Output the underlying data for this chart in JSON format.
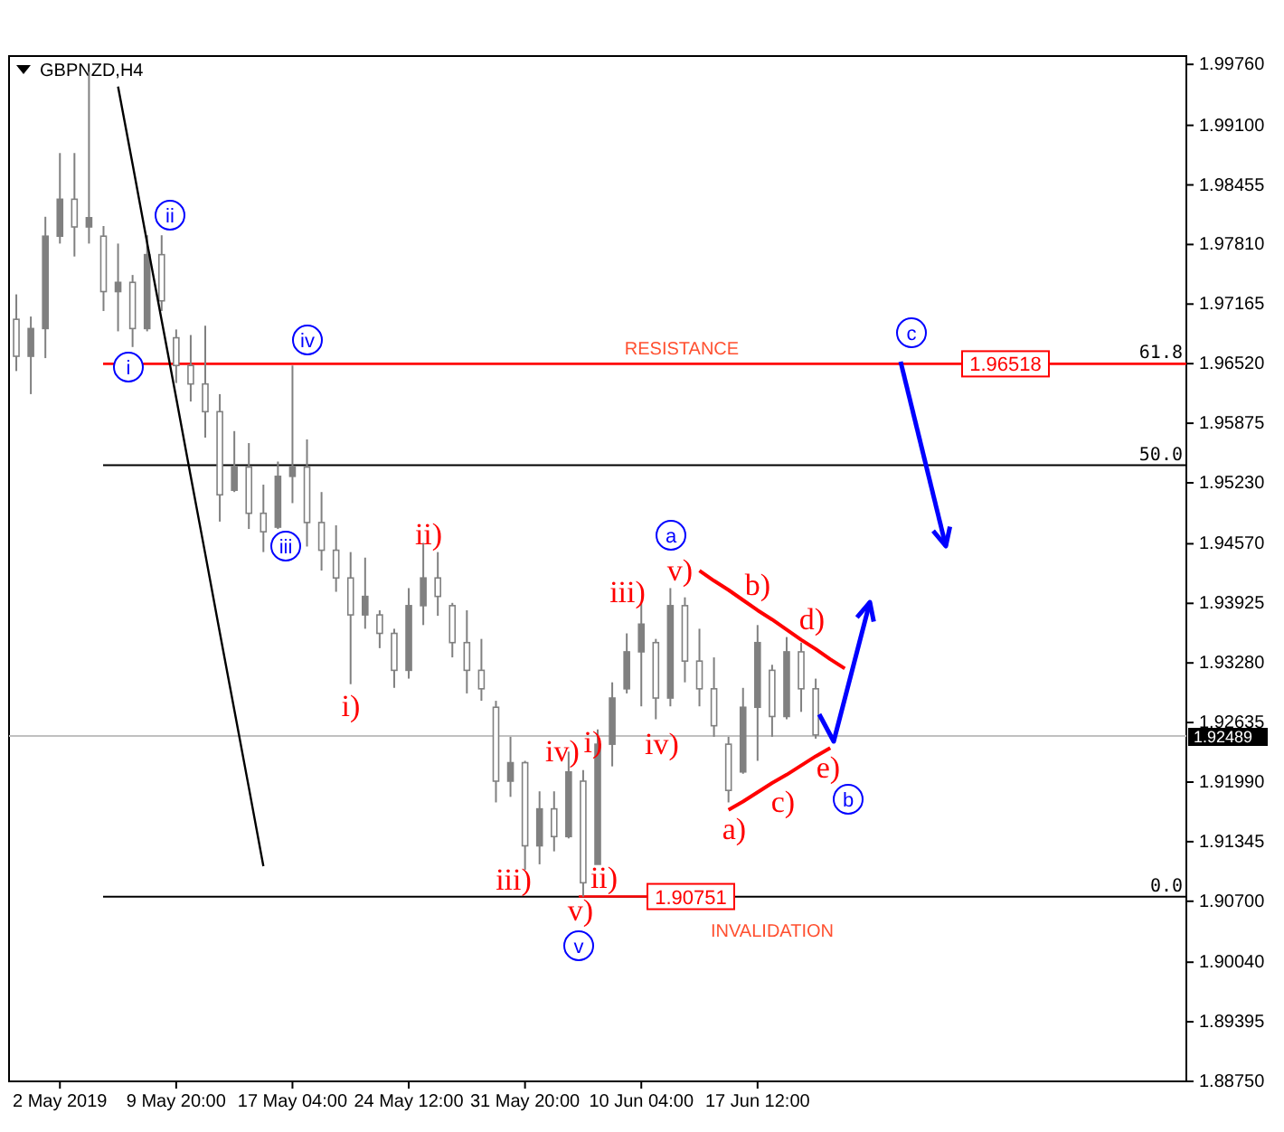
{
  "chart_data": {
    "type": "candlestick",
    "title": "GBPNZD,H4",
    "categories": [
      null,
      null,
      null,
      "2 May 2019",
      null,
      null,
      null,
      null,
      null,
      null,
      null,
      "9 May 20:00",
      null,
      null,
      null,
      null,
      null,
      null,
      null,
      "17 May 04:00",
      null,
      null,
      null,
      null,
      null,
      null,
      null,
      "24 May 12:00",
      null,
      null,
      null,
      null,
      null,
      null,
      null,
      "31 May 20:00",
      null,
      null,
      null,
      null,
      null,
      null,
      null,
      "10 Jun 04:00",
      null,
      null,
      null,
      null,
      null,
      null,
      null,
      "17 Jun 12:00",
      null,
      null,
      null,
      null,
      null,
      null,
      null,
      null,
      null,
      null,
      null,
      null,
      null,
      null,
      null,
      null,
      null,
      null,
      null,
      null,
      null,
      null,
      null,
      null,
      null,
      null,
      null,
      null,
      null
    ],
    "ylim": [
      1.8875,
      1.9985
    ],
    "yticks": [
      {
        "value": 1.9976,
        "label": "1.99760"
      },
      {
        "value": 1.991,
        "label": "1.99100"
      },
      1.98455,
      {
        "value": 1.9781,
        "label": "1.97810"
      },
      1.97165,
      {
        "value": 1.9652,
        "label": "1.96520"
      },
      1.95875,
      {
        "value": 1.9523,
        "label": "1.95230"
      },
      {
        "value": 1.9457,
        "label": "1.94570"
      },
      1.93925,
      {
        "value": 1.9328,
        "label": "1.93280"
      },
      1.92635,
      {
        "value": 1.9199,
        "label": "1.91990"
      },
      1.91345,
      {
        "value": 1.907,
        "label": "1.90700"
      },
      {
        "value": 1.9004,
        "label": "1.90040"
      },
      1.89395,
      {
        "value": 1.8875,
        "label": "1.88750"
      }
    ],
    "series": [
      {
        "color": "#808080",
        "ohlc": [
          [
            1.97,
            1.9727,
            1.9644,
            1.966
          ],
          [
            1.966,
            1.9703,
            1.9619,
            1.969
          ],
          [
            1.969,
            1.9811,
            1.9658,
            1.979
          ],
          [
            1.979,
            1.988,
            1.9782,
            1.983
          ],
          [
            1.983,
            1.988,
            1.9768,
            1.98
          ],
          [
            1.98,
            1.9968,
            1.9782,
            1.981
          ],
          [
            1.979,
            1.9801,
            1.9709,
            1.973
          ],
          [
            1.973,
            1.9782,
            1.9687,
            1.974
          ],
          [
            1.974,
            1.9748,
            1.967,
            1.969
          ],
          [
            1.969,
            1.9791,
            1.9687,
            1.977
          ],
          [
            1.977,
            1.9791,
            1.9709,
            1.972
          ],
          [
            1.968,
            1.9689,
            1.9631,
            1.965
          ],
          [
            1.965,
            1.9683,
            1.9611,
            1.963
          ],
          [
            1.963,
            1.9693,
            1.9572,
            1.96
          ],
          [
            1.96,
            1.9619,
            1.9481,
            1.951
          ],
          [
            1.9515,
            1.9579,
            1.9513,
            1.954
          ],
          [
            1.954,
            1.9566,
            1.9473,
            1.949
          ],
          [
            1.949,
            1.9521,
            1.9448,
            1.947
          ],
          [
            1.9475,
            1.9546,
            1.9473,
            1.953
          ],
          [
            1.953,
            1.965,
            1.9501,
            1.954
          ],
          [
            1.954,
            1.957,
            1.9454,
            1.948
          ],
          [
            1.948,
            1.9513,
            1.9428,
            1.945
          ],
          [
            1.945,
            1.9477,
            1.9405,
            1.942
          ],
          [
            1.942,
            1.9448,
            1.9305,
            1.938
          ],
          [
            1.938,
            1.9442,
            1.9365,
            1.94
          ],
          [
            1.938,
            1.9385,
            1.9344,
            1.936
          ],
          [
            1.936,
            1.9365,
            1.9301,
            1.932
          ],
          [
            1.932,
            1.9409,
            1.9311,
            1.939
          ],
          [
            1.939,
            1.9458,
            1.9369,
            1.942
          ],
          [
            1.942,
            1.9448,
            1.9379,
            1.94
          ],
          [
            1.939,
            1.9393,
            1.9334,
            1.935
          ],
          [
            1.935,
            1.9385,
            1.9295,
            1.932
          ],
          [
            1.932,
            1.9354,
            1.9287,
            1.93
          ],
          [
            1.928,
            1.9287,
            1.9177,
            1.92
          ],
          [
            1.92,
            1.9248,
            1.9183,
            1.922
          ],
          [
            1.922,
            1.9222,
            1.9104,
            1.913
          ],
          [
            1.913,
            1.9189,
            1.911,
            1.917
          ],
          [
            1.917,
            1.9189,
            1.9124,
            1.914
          ],
          [
            1.914,
            1.9232,
            1.9138,
            1.921
          ],
          [
            1.92,
            1.9212,
            1.9075,
            1.909
          ],
          [
            1.911,
            1.9256,
            1.911,
            1.924
          ],
          [
            1.924,
            1.9307,
            1.9216,
            1.929
          ],
          [
            1.93,
            1.936,
            1.9295,
            1.934
          ],
          [
            1.934,
            1.9393,
            1.9281,
            1.937
          ],
          [
            1.935,
            1.9354,
            1.9267,
            1.929
          ],
          [
            1.929,
            1.9409,
            1.9281,
            1.939
          ],
          [
            1.939,
            1.9399,
            1.9307,
            1.933
          ],
          [
            1.933,
            1.9365,
            1.9281,
            1.93
          ],
          [
            1.93,
            1.9334,
            1.9248,
            1.926
          ],
          [
            1.924,
            1.9248,
            1.9177,
            1.919
          ],
          [
            1.921,
            1.9301,
            1.9208,
            1.928
          ],
          [
            1.928,
            1.9369,
            1.9222,
            1.935
          ],
          [
            1.932,
            1.9326,
            1.9248,
            1.927
          ],
          [
            1.927,
            1.9356,
            1.9267,
            1.934
          ],
          [
            1.934,
            1.935,
            1.9275,
            1.93
          ],
          [
            1.93,
            1.9311,
            1.9246,
            1.925
          ],
          null,
          null,
          null,
          null,
          null,
          null,
          null,
          null,
          null,
          null,
          null,
          null,
          null,
          null,
          null,
          null,
          null,
          null,
          null,
          null,
          null,
          null,
          null,
          null,
          null
        ]
      },
      {
        "type": "line",
        "color": "#000000",
        "values": [
          null,
          null,
          null,
          null,
          null,
          null,
          null,
          1.9952,
          1.9868,
          1.9783,
          1.9699,
          1.9615,
          1.953,
          1.9446,
          1.9361,
          1.9277,
          1.9193,
          1.9108,
          null,
          null,
          null,
          null,
          null,
          null,
          null,
          null,
          null,
          null,
          null,
          null,
          null,
          null,
          null,
          null,
          null,
          null,
          null,
          null,
          null,
          null,
          null,
          null,
          null,
          null,
          null,
          null,
          null,
          null,
          null,
          null,
          null,
          null,
          null,
          null,
          null,
          null,
          null,
          null,
          null,
          null,
          null,
          null,
          null,
          null,
          null,
          null,
          null,
          null,
          null,
          null,
          null,
          null,
          null,
          null,
          null,
          null,
          null,
          null,
          null,
          null,
          null
        ]
      },
      {
        "type": "line",
        "color": "#ff0000",
        "values": [
          null,
          null,
          null,
          null,
          null,
          null,
          null,
          null,
          null,
          null,
          null,
          null,
          null,
          null,
          null,
          null,
          null,
          null,
          null,
          null,
          null,
          null,
          null,
          null,
          null,
          null,
          null,
          null,
          null,
          null,
          null,
          null,
          null,
          null,
          null,
          null,
          null,
          null,
          null,
          null,
          null,
          null,
          null,
          null,
          null,
          null,
          null,
          1.9428,
          1.9417,
          1.9407,
          1.9396,
          1.9385,
          1.9375,
          1.9364,
          1.9353,
          1.9343,
          1.9332,
          1.9322,
          null,
          null,
          null,
          null,
          null,
          null,
          null,
          null,
          null,
          null,
          null,
          null,
          null,
          null,
          null,
          null,
          null,
          null,
          null,
          null,
          null,
          null,
          null
        ]
      },
      {
        "type": "line",
        "color": "#ff0000",
        "values": [
          null,
          null,
          null,
          null,
          null,
          null,
          null,
          null,
          null,
          null,
          null,
          null,
          null,
          null,
          null,
          null,
          null,
          null,
          null,
          null,
          null,
          null,
          null,
          null,
          null,
          null,
          null,
          null,
          null,
          null,
          null,
          null,
          null,
          null,
          null,
          null,
          null,
          null,
          null,
          null,
          null,
          null,
          null,
          null,
          null,
          null,
          null,
          null,
          null,
          1.9169,
          1.9178,
          1.9188,
          1.9198,
          1.9207,
          1.9217,
          1.9227,
          1.9236,
          null,
          null,
          null,
          null,
          null,
          null,
          null,
          null,
          null,
          null,
          null,
          null,
          null,
          null,
          null,
          null,
          null,
          null,
          null,
          null,
          null,
          null,
          null,
          null
        ]
      }
    ],
    "ref_lines": [
      {
        "axis": "y",
        "value": 1.9542
      },
      {
        "axis": "y",
        "value": 1.9075
      },
      {
        "axis": "y",
        "value": 1.96518,
        "label": "1.96518",
        "color": "#ff0000"
      },
      {
        "axis": "y",
        "value": 1.90751,
        "label": "1.90751",
        "color": "#ff0000"
      },
      {
        "axis": "y",
        "value": 1.92489,
        "label": "1.92489",
        "color": "#c0c0c0"
      }
    ],
    "annotations": [
      "i",
      "ii",
      "iii",
      "iv",
      "v",
      "a",
      "b",
      "c",
      "ii)",
      "i)",
      "iii)",
      "iv)",
      "i)",
      "ii)",
      "v)",
      "iii)",
      "iv)",
      "v)",
      "b)",
      "d)",
      "a)",
      "c)",
      "e)",
      "RESISTANCE",
      "INVALIDATION",
      {
        "text": "61.8",
        "y": 1.96518
      },
      {
        "text": "50.0",
        "y": 1.9542
      },
      {
        "text": "0.0",
        "y": 1.9075
      }
    ]
  }
}
